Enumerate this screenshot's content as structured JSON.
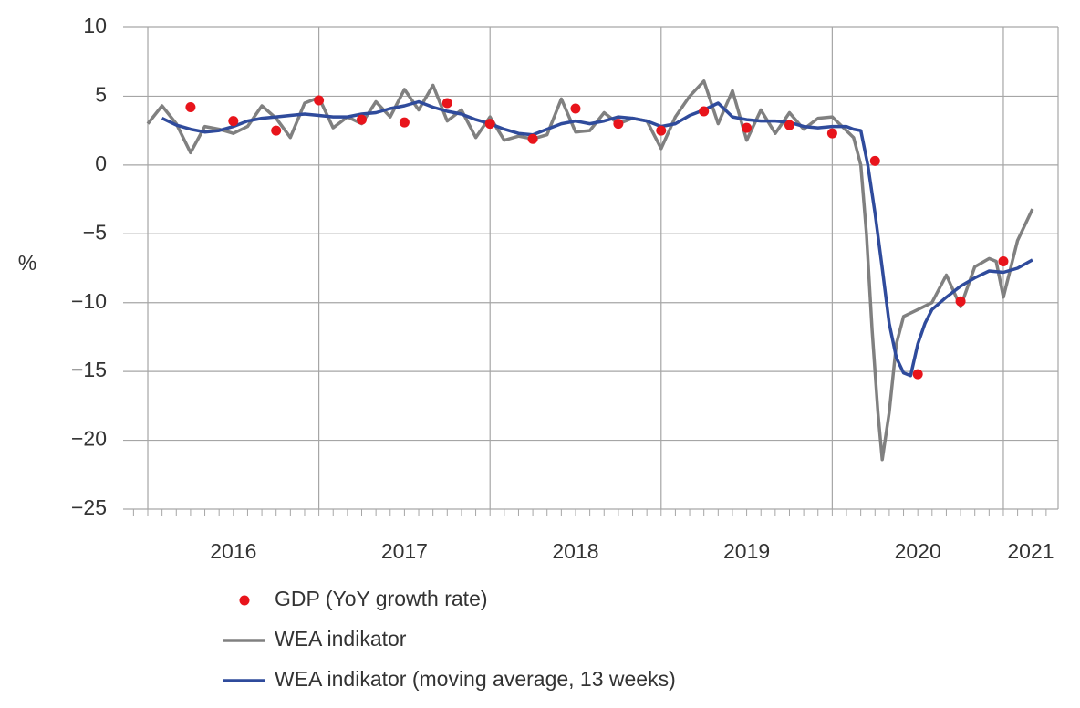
{
  "chart_data": {
    "type": "line",
    "y_label": "%",
    "xlim": [
      2015.856,
      2021.32
    ],
    "xticks": [
      {
        "value": 2016,
        "label": "2016"
      },
      {
        "value": 2017,
        "label": "2017"
      },
      {
        "value": 2018,
        "label": "2018"
      },
      {
        "value": 2019,
        "label": "2019"
      },
      {
        "value": 2020,
        "label": "2020"
      },
      {
        "value": 2021,
        "label": "2021"
      }
    ],
    "ylim": [
      -25,
      10
    ],
    "yticks": [
      {
        "value": -25,
        "label": "−25"
      },
      {
        "value": -20,
        "label": "−20"
      },
      {
        "value": -15,
        "label": "−15"
      },
      {
        "value": -10,
        "label": "−10"
      },
      {
        "value": -5,
        "label": "−5"
      },
      0,
      5,
      10
    ],
    "grid": true,
    "series": [
      {
        "name": "GDP (YoY growth rate)",
        "type": "scatter",
        "color": "#e8141b",
        "x": [
          2016.25,
          2016.5,
          2016.75,
          2017.0,
          2017.25,
          2017.5,
          2017.75,
          2018.0,
          2018.25,
          2018.5,
          2018.75,
          2019.0,
          2019.25,
          2019.5,
          2019.75,
          2020.0,
          2020.25,
          2020.5,
          2020.75,
          2021.0
        ],
        "values": [
          4.2,
          3.2,
          2.5,
          4.7,
          3.3,
          3.1,
          4.5,
          3.0,
          1.9,
          4.1,
          3.0,
          2.5,
          3.9,
          2.7,
          2.9,
          2.3,
          0.3,
          -15.2,
          -9.9,
          -7.0
        ]
      },
      {
        "name": "WEA indikator",
        "type": "line",
        "color": "#808080",
        "x": [
          2016.0,
          2016.083,
          2016.167,
          2016.25,
          2016.333,
          2016.417,
          2016.5,
          2016.583,
          2016.667,
          2016.75,
          2016.833,
          2016.917,
          2017.0,
          2017.083,
          2017.167,
          2017.25,
          2017.333,
          2017.417,
          2017.5,
          2017.583,
          2017.667,
          2017.75,
          2017.833,
          2017.917,
          2018.0,
          2018.083,
          2018.167,
          2018.25,
          2018.333,
          2018.417,
          2018.5,
          2018.583,
          2018.667,
          2018.75,
          2018.833,
          2018.917,
          2019.0,
          2019.083,
          2019.167,
          2019.25,
          2019.333,
          2019.417,
          2019.5,
          2019.583,
          2019.667,
          2019.75,
          2019.833,
          2019.917,
          2020.0,
          2020.083,
          2020.125,
          2020.167,
          2020.2,
          2020.233,
          2020.267,
          2020.292,
          2020.333,
          2020.375,
          2020.417,
          2020.5,
          2020.583,
          2020.667,
          2020.75,
          2020.833,
          2020.917,
          2020.958,
          2021.0,
          2021.083,
          2021.17
        ],
        "values": [
          3.0,
          4.3,
          3.0,
          0.9,
          2.8,
          2.6,
          2.3,
          2.8,
          4.3,
          3.4,
          2.0,
          4.5,
          4.9,
          2.7,
          3.5,
          3.0,
          4.6,
          3.5,
          5.5,
          4.0,
          5.8,
          3.2,
          4.0,
          2.0,
          3.5,
          1.8,
          2.1,
          1.9,
          2.2,
          4.8,
          2.4,
          2.5,
          3.8,
          3.0,
          3.4,
          3.2,
          1.2,
          3.5,
          5.0,
          6.1,
          3.0,
          5.4,
          1.8,
          4.0,
          2.3,
          3.8,
          2.6,
          3.4,
          3.5,
          2.5,
          2.0,
          0,
          -5.0,
          -12.0,
          -18.0,
          -21.4,
          -18.0,
          -13.0,
          -11.0,
          -10.5,
          -10.0,
          -8.0,
          -10.3,
          -7.4,
          -6.8,
          -7.0,
          -9.6,
          -5.5,
          -3.2
        ]
      },
      {
        "name": "WEA indikator (moving average, 13 weeks)",
        "type": "line",
        "color": "#2f4b9c",
        "x": [
          2016.083,
          2016.167,
          2016.25,
          2016.333,
          2016.417,
          2016.5,
          2016.583,
          2016.667,
          2016.75,
          2016.833,
          2016.917,
          2017.0,
          2017.083,
          2017.167,
          2017.25,
          2017.333,
          2017.417,
          2017.5,
          2017.583,
          2017.667,
          2017.75,
          2017.833,
          2017.917,
          2018.0,
          2018.083,
          2018.167,
          2018.25,
          2018.333,
          2018.417,
          2018.5,
          2018.583,
          2018.667,
          2018.75,
          2018.833,
          2018.917,
          2019.0,
          2019.083,
          2019.167,
          2019.25,
          2019.333,
          2019.417,
          2019.5,
          2019.583,
          2019.667,
          2019.75,
          2019.833,
          2019.917,
          2020.0,
          2020.083,
          2020.125,
          2020.167,
          2020.208,
          2020.25,
          2020.292,
          2020.333,
          2020.375,
          2020.417,
          2020.458,
          2020.5,
          2020.542,
          2020.583,
          2020.667,
          2020.75,
          2020.833,
          2020.917,
          2021.0,
          2021.083,
          2021.17
        ],
        "values": [
          3.4,
          2.9,
          2.6,
          2.4,
          2.5,
          2.8,
          3.2,
          3.4,
          3.5,
          3.6,
          3.7,
          3.6,
          3.5,
          3.5,
          3.7,
          3.8,
          4.1,
          4.3,
          4.6,
          4.2,
          3.9,
          3.7,
          3.3,
          3.0,
          2.6,
          2.3,
          2.2,
          2.6,
          3.0,
          3.2,
          3.0,
          3.2,
          3.5,
          3.4,
          3.2,
          2.8,
          3.0,
          3.6,
          4.0,
          4.5,
          3.5,
          3.3,
          3.2,
          3.2,
          3.1,
          2.8,
          2.7,
          2.8,
          2.8,
          2.6,
          2.5,
          0,
          -3.5,
          -7.5,
          -11.5,
          -14.0,
          -15.1,
          -15.3,
          -13.0,
          -11.5,
          -10.5,
          -9.6,
          -8.8,
          -8.2,
          -7.7,
          -7.8,
          -7.5,
          -6.9
        ]
      }
    ]
  }
}
